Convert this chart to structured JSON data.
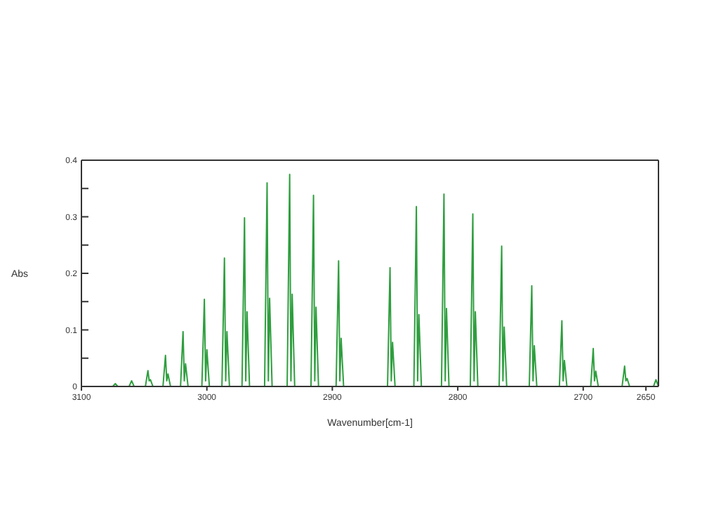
{
  "chart_data": {
    "type": "line",
    "xlabel": "Wavenumber[cm-1]",
    "ylabel": "Abs",
    "xlim": [
      3100,
      2640
    ],
    "xticks": [
      3100,
      3000,
      2900,
      2800,
      2700,
      2650
    ],
    "ylim": [
      0,
      0.4
    ],
    "yticks": [
      0,
      {
        "value": 0.05,
        "label": null
      },
      0.1,
      {
        "value": 0.15,
        "label": null
      },
      0.2,
      {
        "value": 0.25,
        "label": null
      },
      0.3,
      {
        "value": 0.35,
        "label": null
      },
      0.4
    ],
    "marker": "none",
    "line_style": "solid",
    "series": [
      {
        "color": "#2e9e3e",
        "x": [
          3100,
          3075,
          3073,
          3071,
          3062,
          3060,
          3058,
          3049,
          3047,
          3046,
          3045,
          3043,
          3035,
          3033,
          3032,
          3031,
          3029,
          3021,
          3019,
          3018,
          3017,
          3015,
          3004,
          3002,
          3001,
          3000,
          2998,
          2988,
          2986,
          2985,
          2984,
          2982,
          2972,
          2970,
          2969,
          2968,
          2966,
          2954,
          2952,
          2951,
          2950,
          2948,
          2936,
          2934,
          2933,
          2932,
          2930,
          2917,
          2915,
          2914,
          2913,
          2911,
          2897,
          2895,
          2894,
          2893,
          2891,
          2856,
          2854,
          2853,
          2852,
          2850,
          2835,
          2833,
          2832,
          2831,
          2829,
          2813,
          2811,
          2810,
          2809,
          2807,
          2790,
          2788,
          2787,
          2786,
          2784,
          2767,
          2765,
          2764,
          2763,
          2761,
          2743,
          2741,
          2740,
          2739,
          2737,
          2719,
          2717,
          2716,
          2715,
          2713,
          2694,
          2692,
          2691,
          2690,
          2688,
          2669,
          2667,
          2666,
          2665,
          2663,
          2644,
          2642,
          2640
        ],
        "values": [
          0,
          0,
          0.005,
          0,
          0,
          0.01,
          0,
          0,
          0.028,
          0.01,
          0.012,
          0,
          0,
          0.055,
          0.01,
          0.022,
          0,
          0,
          0.097,
          0.01,
          0.04,
          0,
          0,
          0.154,
          0.01,
          0.065,
          0,
          0,
          0.227,
          0.01,
          0.097,
          0,
          0,
          0.298,
          0.01,
          0.132,
          0,
          0,
          0.36,
          0.01,
          0.156,
          0,
          0,
          0.375,
          0.01,
          0.163,
          0,
          0,
          0.338,
          0.01,
          0.14,
          0,
          0,
          0.222,
          0.01,
          0.085,
          0,
          0,
          0.21,
          0.01,
          0.078,
          0,
          0,
          0.318,
          0.01,
          0.127,
          0,
          0,
          0.34,
          0.01,
          0.138,
          0,
          0,
          0.305,
          0.01,
          0.132,
          0,
          0,
          0.248,
          0.01,
          0.105,
          0,
          0,
          0.178,
          0.01,
          0.072,
          0,
          0,
          0.116,
          0.01,
          0.046,
          0,
          0,
          0.067,
          0.01,
          0.027,
          0,
          0,
          0.036,
          0.01,
          0.014,
          0,
          0,
          0.012,
          0
        ]
      }
    ]
  }
}
